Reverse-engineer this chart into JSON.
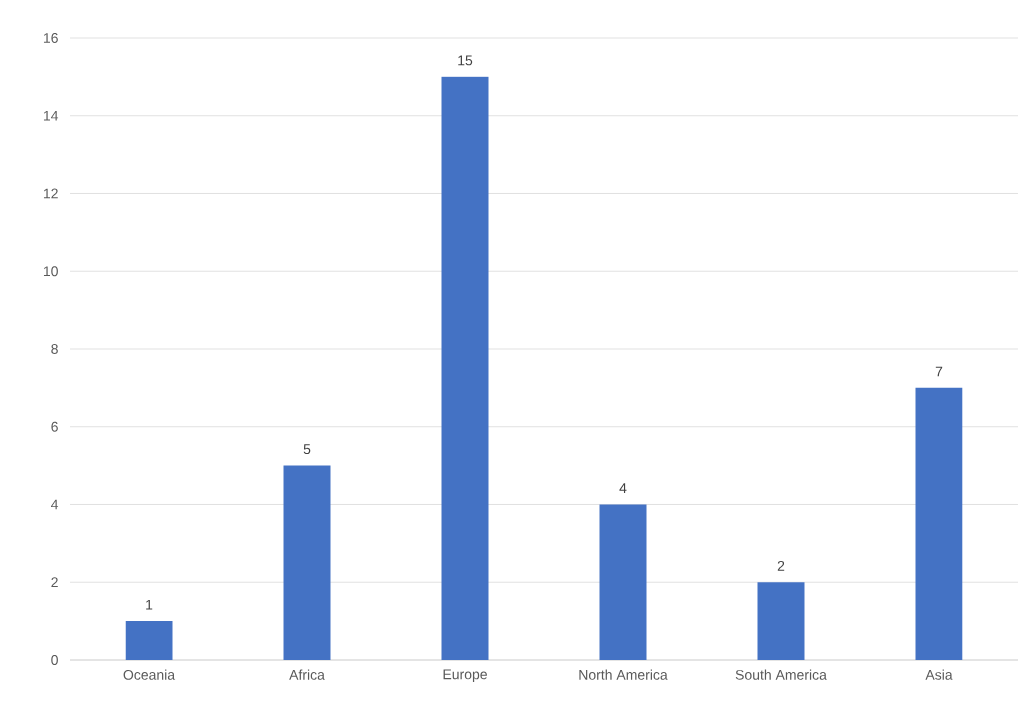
{
  "chart_data": {
    "type": "bar",
    "categories": [
      "Oceania",
      "Africa",
      "Europe",
      "North America",
      "South America",
      "Asia"
    ],
    "values": [
      1,
      5,
      15,
      4,
      2,
      7
    ],
    "color": "#4472c4",
    "ylim": [
      0,
      16
    ],
    "yticks": [
      0,
      2,
      4,
      6,
      8,
      10,
      12,
      14,
      16
    ],
    "grid": "y",
    "data_labels": true
  }
}
